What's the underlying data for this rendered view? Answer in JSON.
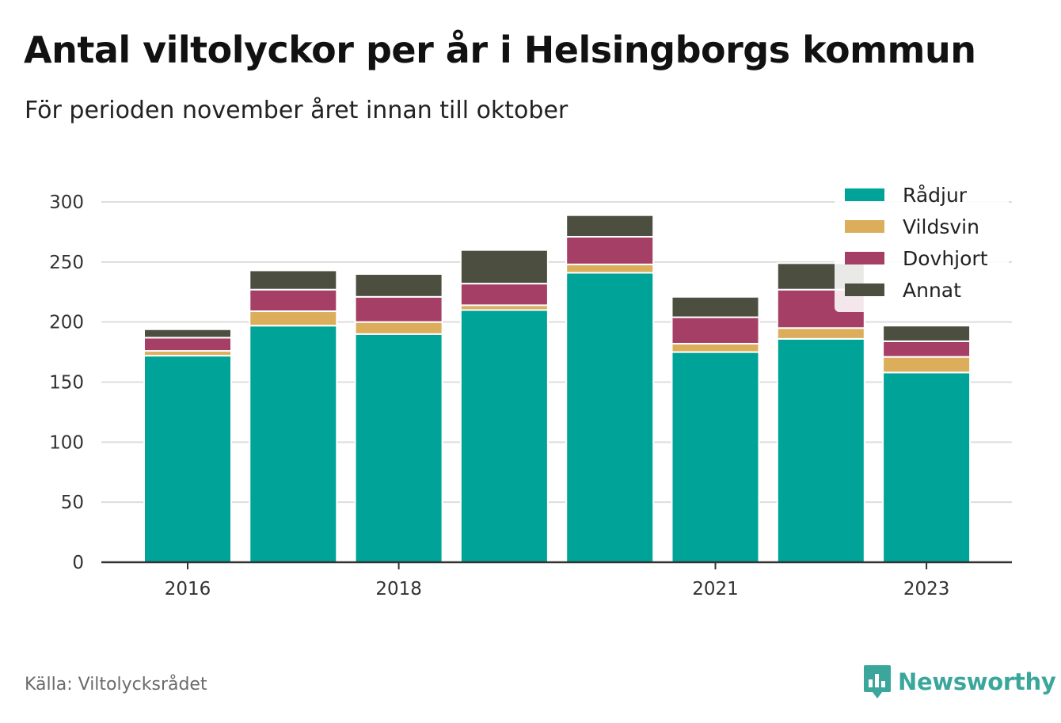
{
  "title": "Antal viltolyckor per år i Helsingborgs kommun",
  "subtitle": "För perioden november året innan till oktober",
  "source": "Källa: Viltolycksrådet",
  "brand": {
    "name": "Newsworthy",
    "icon": "newsworthy-logo-icon",
    "color": "#3ba69c"
  },
  "chart_data": {
    "type": "bar",
    "stacked": true,
    "categories": [
      "2016",
      "2017",
      "2018",
      "2019",
      "2020",
      "2021",
      "2022",
      "2023"
    ],
    "x_tick_labels": [
      "2016",
      "",
      "2018",
      "",
      "",
      "2021",
      "",
      "2023"
    ],
    "ylim": [
      0,
      300
    ],
    "yticks": [
      0,
      50,
      100,
      150,
      200,
      250,
      300
    ],
    "grid": true,
    "legend_position": "top-right",
    "series": [
      {
        "name": "Rådjur",
        "color": "#00a398",
        "values": [
          172,
          197,
          190,
          210,
          241,
          175,
          186,
          158
        ]
      },
      {
        "name": "Vildsvin",
        "color": "#dcae5b",
        "values": [
          4,
          12,
          10,
          4,
          7,
          7,
          9,
          13
        ]
      },
      {
        "name": "Dovhjort",
        "color": "#a63f66",
        "values": [
          11,
          18,
          21,
          18,
          23,
          22,
          32,
          13
        ]
      },
      {
        "name": "Annat",
        "color": "#4c4f40",
        "values": [
          7,
          16,
          19,
          28,
          18,
          17,
          22,
          13
        ]
      }
    ]
  }
}
